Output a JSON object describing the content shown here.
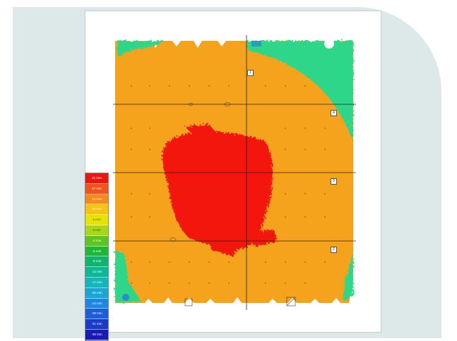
{
  "legend": {
    "items": [
      {
        "label": "21 mm",
        "color": "#e8170f"
      },
      {
        "label": "17 mm",
        "color": "#f1531a"
      },
      {
        "label": "13 mm",
        "color": "#f48a1b"
      },
      {
        "label": "10 mm",
        "color": "#f7c30e"
      },
      {
        "label": "6 mm",
        "color": "#e4e400"
      },
      {
        "label": "2 mm",
        "color": "#a6d818"
      },
      {
        "label": "-2 mm",
        "color": "#5cc61e"
      },
      {
        "label": "-5 mm",
        "color": "#20b63a"
      },
      {
        "label": "-9 mm",
        "color": "#10b46c"
      },
      {
        "label": "-13 mm",
        "color": "#0ab894"
      },
      {
        "label": "-17 mm",
        "color": "#13b7b9"
      },
      {
        "label": "-20 mm",
        "color": "#18a6d8"
      },
      {
        "label": "-24 mm",
        "color": "#1d86e0"
      },
      {
        "label": "-28 mm",
        "color": "#1b5fd8"
      },
      {
        "label": "-31 mm",
        "color": "#1a3bc8"
      },
      {
        "label": "-35 mm",
        "color": "#1a1ab4"
      }
    ]
  },
  "markers": [
    {
      "label": "1"
    },
    {
      "label": "4"
    },
    {
      "label": "3"
    },
    {
      "label": "2"
    }
  ],
  "colors": {
    "base_orange": "#f5a31d",
    "hot_red": "#f2190c",
    "edge_green": "#2ed68a",
    "edge_blue": "#2a6fe0",
    "background": "#dde8e9"
  }
}
